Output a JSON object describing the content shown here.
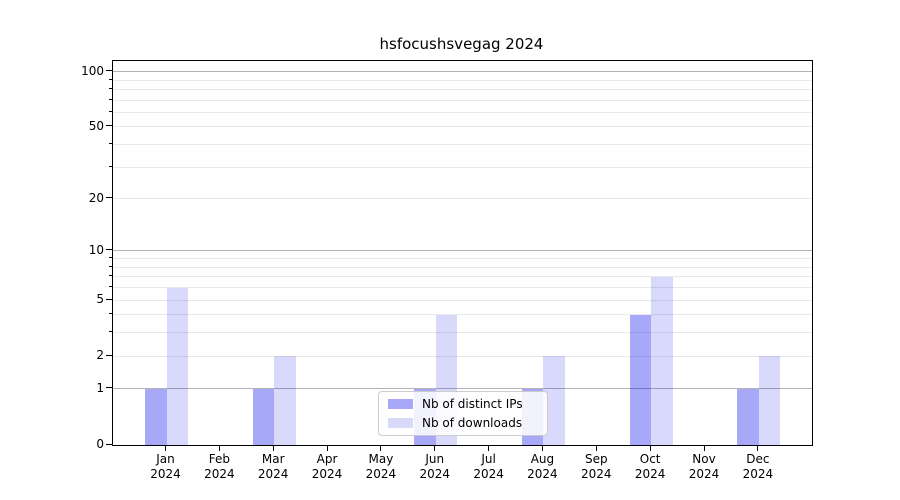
{
  "chart_data": {
    "type": "bar",
    "title": "hsfocushsvegag 2024",
    "xlabel": "",
    "ylabel": "",
    "categories": [
      "Jan 2024",
      "Feb 2024",
      "Mar 2024",
      "Apr 2024",
      "May 2024",
      "Jun 2024",
      "Jul 2024",
      "Aug 2024",
      "Sep 2024",
      "Oct 2024",
      "Nov 2024",
      "Dec 2024"
    ],
    "series": [
      {
        "name": "Nb of distinct IPs",
        "color": "rgba(0,0,238,0.34)",
        "values": [
          1,
          0,
          1,
          0,
          0,
          1,
          0,
          1,
          0,
          4,
          0,
          1
        ]
      },
      {
        "name": "Nb of downloads",
        "color": "rgba(0,0,238,0.15)",
        "values": [
          6,
          0,
          2,
          0,
          0,
          4,
          0,
          2,
          0,
          7,
          0,
          2
        ]
      }
    ],
    "yscale": "log1p",
    "ylim": [
      0,
      115
    ],
    "y_tick_values": [
      0,
      1,
      2,
      5,
      10,
      20,
      50,
      100
    ],
    "y_major_gridlines": [
      1,
      10,
      100
    ],
    "y_minor_gridlines": [
      2,
      3,
      4,
      5,
      6,
      7,
      8,
      9,
      20,
      30,
      40,
      50,
      60,
      70,
      80,
      90
    ],
    "grid": "both",
    "legend_position": "lower center",
    "colors": {
      "major_grid": "#b3b3b3",
      "minor_grid": "#e8e8e8",
      "spine": "#000000",
      "background": "#ffffff"
    }
  }
}
